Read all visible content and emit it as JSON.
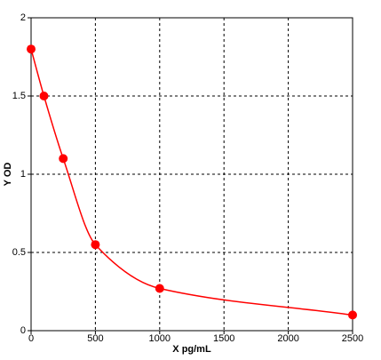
{
  "chart_data": {
    "type": "scatter",
    "x_label": "X pg/mL",
    "y_label": "Y OD",
    "x": [
      0,
      100,
      250,
      500,
      1000,
      2500
    ],
    "series": [
      {
        "color": "#ff0000",
        "values": [
          1.8,
          1.5,
          1.1,
          0.55,
          0.27,
          0.1
        ]
      }
    ],
    "xlim": [
      0,
      2500
    ],
    "xticks": [
      0,
      500,
      1000,
      1500,
      2000,
      2500
    ],
    "ylim": [
      0,
      2
    ],
    "yticks": [
      0,
      0.5,
      1,
      1.5,
      2
    ],
    "grid": true,
    "fit_line": true
  }
}
